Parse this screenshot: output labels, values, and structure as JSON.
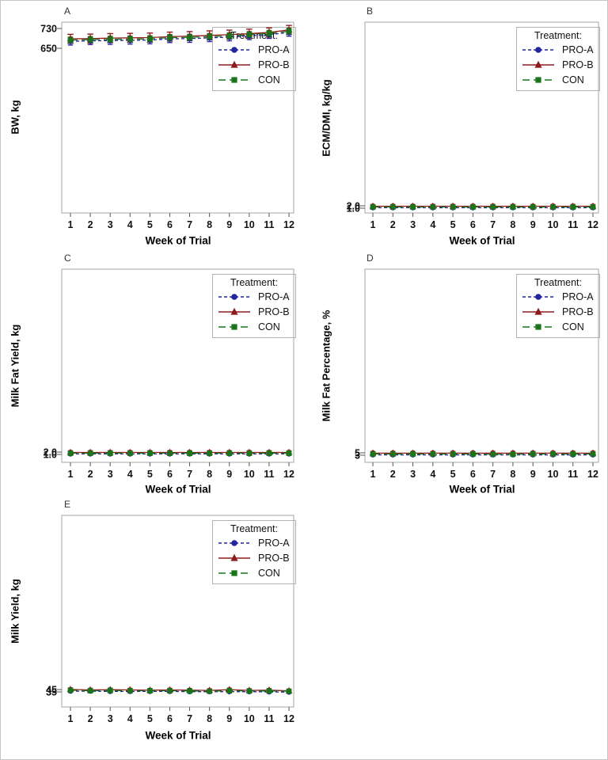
{
  "figure": {
    "background": "#ffffff",
    "border_color": "#c4c4c4",
    "plot_border_color": "#a6a6a6"
  },
  "legend": {
    "title": "Treatment:",
    "entries": [
      {
        "label": "PRO-A",
        "color": "#24249c",
        "marker": "circle",
        "line": "dashed"
      },
      {
        "label": "PRO-B",
        "color": "#8e1b1b",
        "marker": "triangle",
        "line": "solid"
      },
      {
        "label": "CON",
        "color": "#1a741a",
        "marker": "square",
        "line": "long-dash"
      }
    ]
  },
  "chart_data": [
    {
      "type": "line",
      "panel_label": "A",
      "ylabel": "BW, kg",
      "xlabel": "Week of Trial",
      "x": [
        1,
        2,
        3,
        4,
        5,
        6,
        7,
        8,
        9,
        10,
        11,
        12
      ],
      "yticks": [
        {
          "label": "730",
          "value": 730
        },
        {
          "label": "650",
          "value": 650
        }
      ],
      "error_bars": true,
      "legend_position": "inside top-right",
      "series": [
        {
          "name": "PRO-A",
          "values": [
            681,
            683,
            684,
            685,
            686,
            691,
            692,
            695,
            698,
            703,
            708,
            717
          ],
          "err": 15
        },
        {
          "name": "PRO-B",
          "values": [
            685,
            686,
            688,
            689,
            690,
            694,
            696,
            699,
            702,
            706,
            711,
            721
          ],
          "err": 15
        },
        {
          "name": "CON",
          "values": [
            683,
            685,
            686,
            687,
            688,
            693,
            694,
            697,
            700,
            705,
            710,
            719
          ],
          "err": 15
        }
      ]
    },
    {
      "type": "line",
      "panel_label": "B",
      "ylabel": "ECM/DMI, kg/kg",
      "xlabel": "Week of Trial",
      "x": [
        1,
        2,
        3,
        4,
        5,
        6,
        7,
        8,
        9,
        10,
        11,
        12
      ],
      "yticks": [
        {
          "label": "2.0",
          "value": 2.0
        },
        {
          "label": "1.0",
          "value": 1.0
        }
      ],
      "error_bars": true,
      "legend_position": "inside top-right",
      "series": [
        {
          "name": "PRO-A",
          "values": [
            1.5,
            1.5,
            1.5,
            1.5,
            1.5,
            1.5,
            1.5,
            1.5,
            1.5,
            1.5,
            1.5,
            1.5
          ],
          "err": 0.6
        },
        {
          "name": "PRO-B",
          "values": [
            1.5,
            1.5,
            1.5,
            1.5,
            1.5,
            1.5,
            1.5,
            1.5,
            1.5,
            1.5,
            1.5,
            1.5
          ],
          "err": 0.6
        },
        {
          "name": "CON",
          "values": [
            1.5,
            1.5,
            1.5,
            1.5,
            1.5,
            1.5,
            1.5,
            1.5,
            1.5,
            1.5,
            1.5,
            1.5
          ],
          "err": 0.6
        }
      ]
    },
    {
      "type": "line",
      "panel_label": "C",
      "ylabel": "Milk Fat Yield, kg",
      "xlabel": "Week of Trial",
      "x": [
        1,
        2,
        3,
        4,
        5,
        6,
        7,
        8,
        9,
        10,
        11,
        12
      ],
      "yticks": [
        {
          "label": "2.0",
          "value": 2.0
        },
        {
          "label": "1.0",
          "value": 1.0
        }
      ],
      "error_bars": true,
      "legend_position": "inside top-right",
      "series": [
        {
          "name": "PRO-A",
          "values": [
            1.5,
            1.5,
            1.5,
            1.5,
            1.5,
            1.5,
            1.5,
            1.5,
            1.5,
            1.5,
            1.5,
            1.5
          ],
          "err": 0.6
        },
        {
          "name": "PRO-B",
          "values": [
            1.5,
            1.5,
            1.5,
            1.5,
            1.5,
            1.5,
            1.5,
            1.5,
            1.5,
            1.5,
            1.5,
            1.5
          ],
          "err": 0.6
        },
        {
          "name": "CON",
          "values": [
            1.5,
            1.5,
            1.5,
            1.5,
            1.5,
            1.5,
            1.5,
            1.5,
            1.5,
            1.5,
            1.5,
            1.5
          ],
          "err": 0.6
        }
      ]
    },
    {
      "type": "line",
      "panel_label": "D",
      "ylabel": "Milk Fat Percentage, %",
      "xlabel": "Week of Trial",
      "x": [
        1,
        2,
        3,
        4,
        5,
        6,
        7,
        8,
        9,
        10,
        11,
        12
      ],
      "yticks": [
        {
          "label": "5",
          "value": 5
        },
        {
          "label": "3",
          "value": 3
        }
      ],
      "error_bars": true,
      "legend_position": "inside top-right",
      "series": [
        {
          "name": "PRO-A",
          "values": [
            3.9,
            3.9,
            3.9,
            3.9,
            3.9,
            3.9,
            3.9,
            3.9,
            3.9,
            3.9,
            3.9,
            3.9
          ],
          "err": 1.2
        },
        {
          "name": "PRO-B",
          "values": [
            4.1,
            4.1,
            4.1,
            4.1,
            4.1,
            4.1,
            4.1,
            4.1,
            4.1,
            4.1,
            4.1,
            4.1
          ],
          "err": 1.2
        },
        {
          "name": "CON",
          "values": [
            4.0,
            4.0,
            4.0,
            4.0,
            4.0,
            4.0,
            3.8,
            3.8,
            4.0,
            4.0,
            4.0,
            4.0
          ],
          "err": 1.2
        }
      ]
    },
    {
      "type": "line",
      "panel_label": "E",
      "ylabel": "Milk Yield, kg",
      "xlabel": "Week of Trial",
      "x": [
        1,
        2,
        3,
        4,
        5,
        6,
        7,
        8,
        9,
        10,
        11,
        12
      ],
      "yticks": [
        {
          "label": "45",
          "value": 45
        },
        {
          "label": "35",
          "value": 35
        }
      ],
      "error_bars": true,
      "legend_position": "inside top-right",
      "series": [
        {
          "name": "PRO-A",
          "values": [
            41,
            41,
            40,
            40,
            40,
            40,
            39,
            39,
            39,
            39,
            38,
            37
          ],
          "err": 5
        },
        {
          "name": "PRO-B",
          "values": [
            42,
            40,
            41,
            40,
            39,
            40,
            39,
            38,
            41,
            38,
            39,
            36
          ],
          "err": 5
        },
        {
          "name": "CON",
          "values": [
            42,
            40,
            41,
            40,
            40,
            40,
            39,
            38,
            40,
            39,
            39,
            38
          ],
          "err": 5
        }
      ]
    }
  ]
}
